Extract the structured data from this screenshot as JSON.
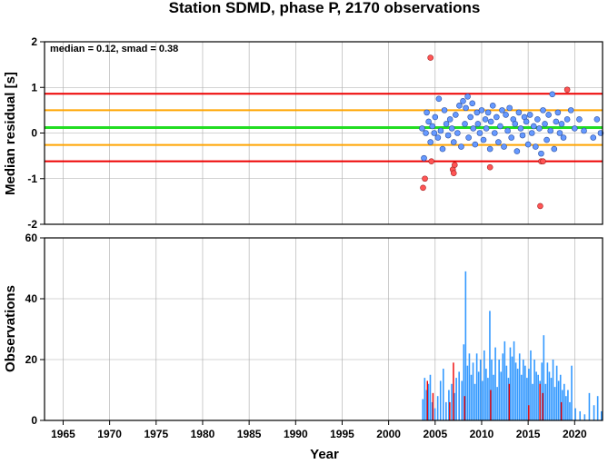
{
  "chart_data": {
    "title": "Station SDMD, phase P, 2170 observations",
    "xlabel": "Year",
    "xlim": [
      1963,
      2023
    ],
    "xticks": [
      1965,
      1970,
      1975,
      1980,
      1985,
      1990,
      1995,
      2000,
      2005,
      2010,
      2015,
      2020
    ],
    "grid": true,
    "colors": {
      "median": "#22dd22",
      "smad_band": "#ffa500",
      "limit": "#ee0000",
      "inlier": "#6699ff",
      "outlier": "#ff5555",
      "bar": "#3399ff",
      "bar_outlier": "#ee0000"
    },
    "top_panel": {
      "type": "scatter",
      "ylabel": "Median residual [s]",
      "ylim": [
        -2,
        2
      ],
      "yticks": [
        -2,
        -1,
        0,
        1,
        2
      ],
      "annotation": "median = 0.12, smad = 0.38",
      "lines": {
        "median": 0.12,
        "smad_low": -0.26,
        "smad_high": 0.5,
        "limit_low": -0.62,
        "limit_high": 0.86
      },
      "inliers": [
        [
          2003.6,
          0.1
        ],
        [
          2003.8,
          -0.55
        ],
        [
          2004.0,
          0.0
        ],
        [
          2004.1,
          0.45
        ],
        [
          2004.3,
          0.25
        ],
        [
          2004.5,
          -0.2
        ],
        [
          2004.7,
          0.15
        ],
        [
          2004.9,
          0.0
        ],
        [
          2005.0,
          0.35
        ],
        [
          2005.3,
          -0.1
        ],
        [
          2005.4,
          0.75
        ],
        [
          2005.6,
          0.05
        ],
        [
          2005.8,
          -0.35
        ],
        [
          2006.0,
          0.5
        ],
        [
          2006.2,
          0.2
        ],
        [
          2006.4,
          -0.05
        ],
        [
          2006.6,
          0.3
        ],
        [
          2006.8,
          0.1
        ],
        [
          2007.0,
          -0.2
        ],
        [
          2007.2,
          0.4
        ],
        [
          2007.4,
          0.0
        ],
        [
          2007.6,
          0.6
        ],
        [
          2007.8,
          -0.3
        ],
        [
          2008.0,
          0.7
        ],
        [
          2008.2,
          0.2
        ],
        [
          2008.3,
          0.55
        ],
        [
          2008.5,
          0.8
        ],
        [
          2008.6,
          -0.1
        ],
        [
          2008.8,
          0.35
        ],
        [
          2009.0,
          0.65
        ],
        [
          2009.1,
          0.1
        ],
        [
          2009.3,
          -0.25
        ],
        [
          2009.5,
          0.45
        ],
        [
          2009.6,
          0.2
        ],
        [
          2009.8,
          0.0
        ],
        [
          2010.0,
          0.5
        ],
        [
          2010.2,
          -0.15
        ],
        [
          2010.4,
          0.3
        ],
        [
          2010.5,
          0.1
        ],
        [
          2010.7,
          0.45
        ],
        [
          2010.9,
          -0.35
        ],
        [
          2011.0,
          0.25
        ],
        [
          2011.2,
          0.6
        ],
        [
          2011.4,
          0.0
        ],
        [
          2011.6,
          0.35
        ],
        [
          2011.8,
          -0.2
        ],
        [
          2012.0,
          0.15
        ],
        [
          2012.2,
          0.5
        ],
        [
          2012.4,
          -0.3
        ],
        [
          2012.6,
          0.4
        ],
        [
          2012.8,
          0.05
        ],
        [
          2013.0,
          0.55
        ],
        [
          2013.2,
          -0.1
        ],
        [
          2013.4,
          0.3
        ],
        [
          2013.6,
          0.2
        ],
        [
          2013.8,
          -0.4
        ],
        [
          2014.0,
          0.45
        ],
        [
          2014.2,
          0.1
        ],
        [
          2014.4,
          -0.05
        ],
        [
          2014.6,
          0.35
        ],
        [
          2014.8,
          0.25
        ],
        [
          2015.0,
          -0.25
        ],
        [
          2015.2,
          0.4
        ],
        [
          2015.4,
          0.0
        ],
        [
          2015.6,
          0.15
        ],
        [
          2015.8,
          -0.3
        ],
        [
          2016.0,
          0.3
        ],
        [
          2016.2,
          0.1
        ],
        [
          2016.4,
          -0.45
        ],
        [
          2016.6,
          0.5
        ],
        [
          2016.8,
          0.2
        ],
        [
          2017.0,
          -0.15
        ],
        [
          2017.2,
          0.4
        ],
        [
          2017.4,
          0.05
        ],
        [
          2017.6,
          0.85
        ],
        [
          2017.8,
          -0.35
        ],
        [
          2018.0,
          0.25
        ],
        [
          2018.2,
          0.45
        ],
        [
          2018.4,
          0.0
        ],
        [
          2018.6,
          0.2
        ],
        [
          2018.8,
          -0.1
        ],
        [
          2019.2,
          0.3
        ],
        [
          2019.6,
          0.5
        ],
        [
          2020.0,
          0.1
        ],
        [
          2020.5,
          0.3
        ],
        [
          2021.0,
          0.05
        ],
        [
          2022.0,
          -0.1
        ],
        [
          2022.4,
          0.3
        ],
        [
          2022.8,
          0.0
        ]
      ],
      "outliers": [
        [
          2003.7,
          -1.2
        ],
        [
          2003.9,
          -1.0
        ],
        [
          2004.5,
          1.65
        ],
        [
          2004.6,
          -0.62
        ],
        [
          2006.9,
          -0.8
        ],
        [
          2007.0,
          -0.88
        ],
        [
          2007.1,
          -0.7
        ],
        [
          2010.9,
          -0.75
        ],
        [
          2016.3,
          -1.6
        ],
        [
          2016.4,
          -0.62
        ],
        [
          2016.6,
          -0.62
        ],
        [
          2019.2,
          0.95
        ]
      ]
    },
    "bottom_panel": {
      "type": "bar",
      "ylabel": "Observations",
      "ylim": [
        0,
        60
      ],
      "yticks": [
        0,
        20,
        40,
        60
      ],
      "bins": [
        [
          2003.6,
          7
        ],
        [
          2003.8,
          14
        ],
        [
          2004.0,
          10
        ],
        [
          2004.2,
          12
        ],
        [
          2004.4,
          15
        ],
        [
          2004.6,
          6
        ],
        [
          2004.9,
          4
        ],
        [
          2005.2,
          8
        ],
        [
          2005.5,
          13
        ],
        [
          2005.8,
          17
        ],
        [
          2006.1,
          6
        ],
        [
          2006.4,
          10
        ],
        [
          2006.7,
          12
        ],
        [
          2007.0,
          9
        ],
        [
          2007.2,
          14
        ],
        [
          2007.5,
          16
        ],
        [
          2007.8,
          13
        ],
        [
          2008.0,
          25
        ],
        [
          2008.2,
          49
        ],
        [
          2008.4,
          18
        ],
        [
          2008.6,
          22
        ],
        [
          2008.8,
          15
        ],
        [
          2009.0,
          19
        ],
        [
          2009.2,
          12
        ],
        [
          2009.4,
          22
        ],
        [
          2009.6,
          16
        ],
        [
          2009.8,
          20
        ],
        [
          2010.0,
          13
        ],
        [
          2010.2,
          23
        ],
        [
          2010.4,
          17
        ],
        [
          2010.6,
          14
        ],
        [
          2010.8,
          36
        ],
        [
          2011.0,
          20
        ],
        [
          2011.2,
          15
        ],
        [
          2011.4,
          24
        ],
        [
          2011.6,
          11
        ],
        [
          2011.8,
          20
        ],
        [
          2012.0,
          16
        ],
        [
          2012.2,
          22
        ],
        [
          2012.4,
          26
        ],
        [
          2012.6,
          18
        ],
        [
          2012.8,
          14
        ],
        [
          2013.0,
          24
        ],
        [
          2013.2,
          21
        ],
        [
          2013.4,
          26
        ],
        [
          2013.6,
          19
        ],
        [
          2013.8,
          17
        ],
        [
          2014.0,
          22
        ],
        [
          2014.2,
          15
        ],
        [
          2014.4,
          20
        ],
        [
          2014.6,
          18
        ],
        [
          2014.8,
          14
        ],
        [
          2015.0,
          17
        ],
        [
          2015.2,
          23
        ],
        [
          2015.4,
          12
        ],
        [
          2015.6,
          20
        ],
        [
          2015.8,
          16
        ],
        [
          2016.0,
          15
        ],
        [
          2016.2,
          13
        ],
        [
          2016.4,
          19
        ],
        [
          2016.6,
          28
        ],
        [
          2016.8,
          12
        ],
        [
          2017.0,
          19
        ],
        [
          2017.2,
          16
        ],
        [
          2017.4,
          14
        ],
        [
          2017.6,
          20
        ],
        [
          2017.8,
          11
        ],
        [
          2018.0,
          18
        ],
        [
          2018.2,
          13
        ],
        [
          2018.4,
          15
        ],
        [
          2018.6,
          10
        ],
        [
          2018.8,
          12
        ],
        [
          2019.0,
          8
        ],
        [
          2019.2,
          10
        ],
        [
          2019.4,
          6
        ],
        [
          2019.6,
          18
        ],
        [
          2020.0,
          4
        ],
        [
          2020.5,
          3
        ],
        [
          2021.0,
          2
        ],
        [
          2021.5,
          9
        ],
        [
          2022.0,
          5
        ],
        [
          2022.4,
          8
        ],
        [
          2022.8,
          3
        ]
      ],
      "outlier_bins": [
        [
          2004.1,
          13
        ],
        [
          2004.7,
          9
        ],
        [
          2006.5,
          6
        ],
        [
          2006.9,
          19
        ],
        [
          2008.1,
          8
        ],
        [
          2010.9,
          10
        ],
        [
          2012.9,
          12
        ],
        [
          2015.0,
          5
        ],
        [
          2016.2,
          12
        ],
        [
          2016.5,
          9
        ],
        [
          2018.5,
          6
        ]
      ]
    }
  }
}
